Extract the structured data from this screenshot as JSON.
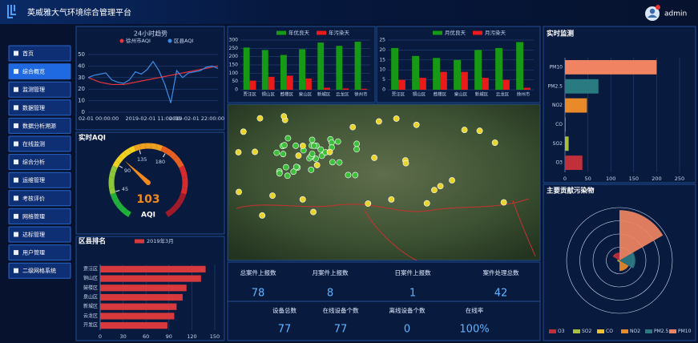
{
  "header": {
    "title": "英威雅大气环境综合管理平台",
    "user": "admin"
  },
  "menu": [
    "首页",
    "综合概览",
    "监测管理",
    "数据管理",
    "数据分析溯源",
    "在线监测",
    "综合分析",
    "运维管理",
    "考核评价",
    "网格管理",
    "达标管理",
    "用户管理",
    "二级网格系统"
  ],
  "active_menu": 1,
  "stats": [
    {
      "label": "总案件上报数",
      "value": "78"
    },
    {
      "label": "月案件上报数",
      "value": "8"
    },
    {
      "label": "日案件上报数",
      "value": "1"
    },
    {
      "label": "案件处理总数",
      "value": "42"
    },
    {
      "label": "设备总数",
      "value": "77"
    },
    {
      "label": "在线设备个数",
      "value": "77"
    },
    {
      "label": "离线设备个数",
      "value": "0"
    },
    {
      "label": "在线率",
      "value": "100%"
    }
  ],
  "chart_data": [
    {
      "type": "line",
      "title": "24小时趋势",
      "categories": [
        "02-01 00:00:00",
        null,
        null,
        null,
        null,
        null,
        null,
        null,
        null,
        null,
        null,
        "2019-02-01 11:00:00",
        null,
        null,
        null,
        null,
        null,
        null,
        null,
        null,
        null,
        null,
        "2019-02-01 22:00:00"
      ],
      "series": [
        {
          "name": "徐州市AQI",
          "color": "#e8343a",
          "values": [
            30,
            28,
            26,
            25,
            24,
            24,
            24,
            25,
            26,
            27,
            28,
            29,
            30,
            31,
            32,
            33,
            34,
            35,
            36,
            37,
            38,
            39,
            40
          ]
        },
        {
          "name": "区县AQI",
          "color": "#3a8ee8",
          "values": [
            30,
            32,
            33,
            34,
            28,
            26,
            25,
            28,
            35,
            33,
            37,
            44,
            36,
            24,
            8,
            36,
            30,
            34,
            35,
            36,
            39,
            40,
            38
          ]
        }
      ],
      "ylim": [
        0,
        50
      ],
      "yticks": [
        0,
        10,
        20,
        30,
        40,
        50
      ],
      "grid": true
    },
    {
      "type": "gauge",
      "title": "实时AQI",
      "value": 103,
      "label": "AQI",
      "lim": [
        0,
        300
      ],
      "ticks": [
        45,
        90,
        135,
        180
      ],
      "color": "#f08a1c"
    },
    {
      "type": "hbar",
      "title": "区县排名",
      "categories": [
        "贾汪区",
        "铜山区",
        "鼓楼区",
        "泉山区",
        "新城区",
        "云龙区",
        "开发区"
      ],
      "series": [
        {
          "name": "2019年3月",
          "color": "#d8393c",
          "values": [
            138,
            132,
            113,
            108,
            100,
            97,
            88
          ]
        }
      ],
      "xlim": [
        0,
        150
      ],
      "xticks": [
        0,
        30,
        60,
        90,
        120,
        150
      ]
    },
    {
      "type": "bar",
      "categories": [
        "贾汪区",
        "铜山区",
        "鼓楼区",
        "泉山区",
        "新城区",
        "云龙区",
        "徐州市"
      ],
      "series": [
        {
          "name": "年优良天",
          "color": "#169a16",
          "values": [
            255,
            240,
            210,
            245,
            285,
            265,
            290
          ]
        },
        {
          "name": "年污染天",
          "color": "#e81a1a",
          "values": [
            55,
            78,
            85,
            68,
            12,
            8,
            6
          ]
        }
      ],
      "ylim": [
        0,
        300
      ],
      "yticks": [
        0,
        50,
        100,
        150,
        200,
        250,
        300
      ],
      "grid": true
    },
    {
      "type": "bar",
      "categories": [
        "贾汪区",
        "铜山区",
        "鼓楼区",
        "泉山区",
        "新城区",
        "云龙区",
        "徐州市"
      ],
      "series": [
        {
          "name": "月优良天",
          "color": "#169a16",
          "values": [
            21,
            17,
            16,
            15,
            20,
            21,
            24
          ]
        },
        {
          "name": "月污染天",
          "color": "#e81a1a",
          "values": [
            5,
            6,
            9,
            9,
            6,
            5,
            1
          ]
        }
      ],
      "ylim": [
        0,
        25
      ],
      "yticks": [
        0,
        5,
        10,
        15,
        20,
        25
      ],
      "grid": true
    },
    {
      "type": "hbar",
      "title": "实时监测",
      "categories": [
        "PM10",
        "PM2.5",
        "NO2",
        "CO",
        "SO2",
        "O3"
      ],
      "values": [
        200,
        73,
        48,
        1,
        8,
        38
      ],
      "colors": [
        "#f08462",
        "#2a7a82",
        "#e88a2a",
        "#f0c030",
        "#a8c03a",
        "#c0303a"
      ],
      "xlim": [
        0,
        250
      ],
      "xticks": [
        0,
        50,
        100,
        150,
        200,
        250
      ]
    },
    {
      "type": "rose",
      "title": "主要贡献污染物",
      "categories": [
        "O3",
        "SO2",
        "CO",
        "NO2",
        "PM2.5",
        "PM10"
      ],
      "values": [
        15,
        4,
        3,
        20,
        30,
        95
      ],
      "colors": [
        "#c0303a",
        "#a8c03a",
        "#f0c030",
        "#e88a2a",
        "#2a7a82",
        "#f08462"
      ],
      "rlim": [
        0,
        100
      ]
    }
  ]
}
